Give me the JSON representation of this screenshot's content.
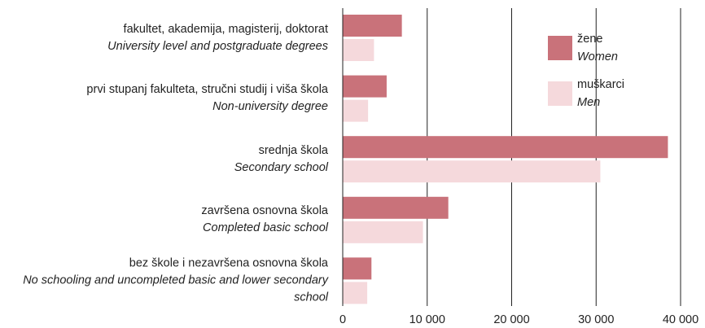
{
  "chart_data": {
    "type": "bar",
    "orientation": "horizontal",
    "categories": [
      "fakultet, akademija, magisterij, doktorat",
      "prvi stupanj fakulteta, stručni studij i viša škola",
      "srednja škola",
      "završena osnovna škola",
      "bez škole i nezavršena osnovna škola"
    ],
    "categories_en": [
      "University level and postgraduate degrees",
      "Non-university degree",
      "Secondary school",
      "Completed basic school",
      "No schooling and uncompleted basic and lower secondary school"
    ],
    "series": [
      {
        "name": "žene",
        "name_en": "Women",
        "color": "#c9727a",
        "values": [
          7000,
          5200,
          38500,
          12500,
          3400
        ]
      },
      {
        "name": "muškarci",
        "name_en": "Men",
        "color": "#f5d9dc",
        "values": [
          3700,
          3000,
          30500,
          9500,
          2900
        ]
      }
    ],
    "xlim": [
      0,
      40000
    ],
    "xticks": [
      0,
      {
        "value": 10000,
        "label": "10 000"
      },
      {
        "value": 20000,
        "label": "20 000"
      },
      {
        "value": 30000,
        "label": "30 000"
      },
      {
        "value": 40000,
        "label": "40 000"
      }
    ],
    "grid": true,
    "legend": "upper right"
  }
}
